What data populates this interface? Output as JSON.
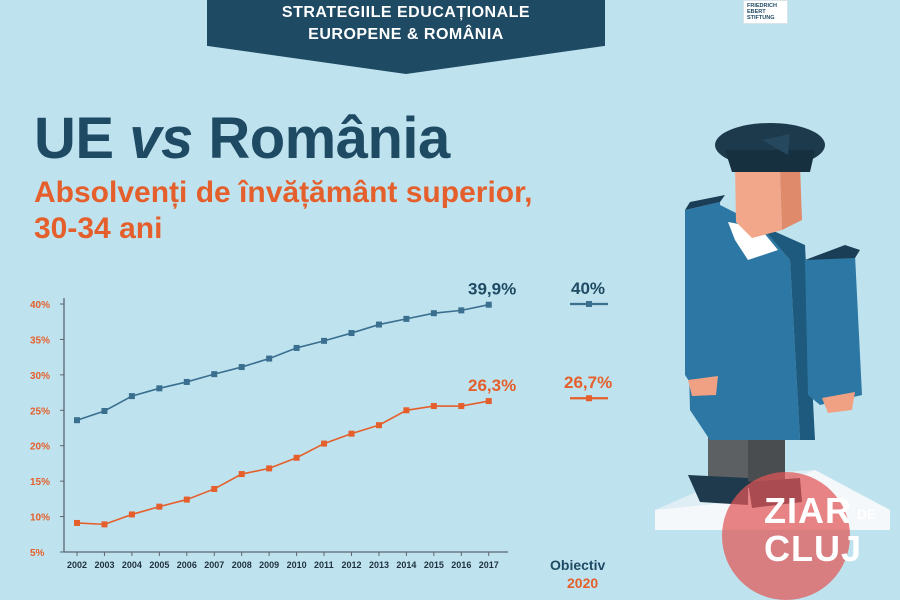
{
  "banner": {
    "line1": "STRATEGIILE EDUCAȚIONALE",
    "line2": "EUROPENE & ROMÂNIA"
  },
  "logo": {
    "line1": "FRIEDRICH",
    "line2": "EBERT",
    "line3": "STIFTUNG"
  },
  "header": {
    "title_part1": "UE ",
    "title_vs": "vs",
    "title_part2": " România",
    "subtitle_line1": "Absolvenți de învățământ superior,",
    "subtitle_line2": "30-34 ani"
  },
  "chart_data": {
    "type": "line",
    "title": "UE vs România",
    "subtitle": "Absolvenți de învățământ superior, 30-34 ani",
    "x": [
      "2002",
      "2003",
      "2004",
      "2005",
      "2006",
      "2007",
      "2008",
      "2009",
      "2010",
      "2011",
      "2012",
      "2013",
      "2014",
      "2015",
      "2016",
      "2017"
    ],
    "y_ticks": [
      "5%",
      "10%",
      "15%",
      "20%",
      "25%",
      "30%",
      "35%",
      "40%"
    ],
    "ylim": [
      5,
      40
    ],
    "series": [
      {
        "name": "UE",
        "color": "#3a6f8f",
        "values": [
          23.6,
          24.9,
          27.0,
          28.1,
          29.0,
          30.1,
          31.1,
          32.3,
          33.8,
          34.8,
          35.9,
          37.1,
          37.9,
          38.7,
          39.1,
          39.9
        ],
        "end_label": "39,9%",
        "target_value": 40,
        "target_label": "40%"
      },
      {
        "name": "România",
        "color": "#e45f2b",
        "values": [
          9.1,
          8.9,
          10.3,
          11.4,
          12.4,
          13.9,
          16.0,
          16.8,
          18.3,
          20.3,
          21.7,
          22.9,
          25.0,
          25.6,
          25.6,
          26.3
        ],
        "end_label": "26,3%",
        "target_value": 26.7,
        "target_label": "26,7%"
      }
    ],
    "target_caption_line1": "Obiectiv",
    "target_caption_line2": "2020"
  },
  "watermark": {
    "word1": "ZIAR",
    "word2": "DE",
    "word3": "CLUJ",
    "color": "#e25656"
  },
  "colors": {
    "navy": "#1f4a63",
    "orange": "#e45f2b",
    "background": "#bfe3ee"
  }
}
